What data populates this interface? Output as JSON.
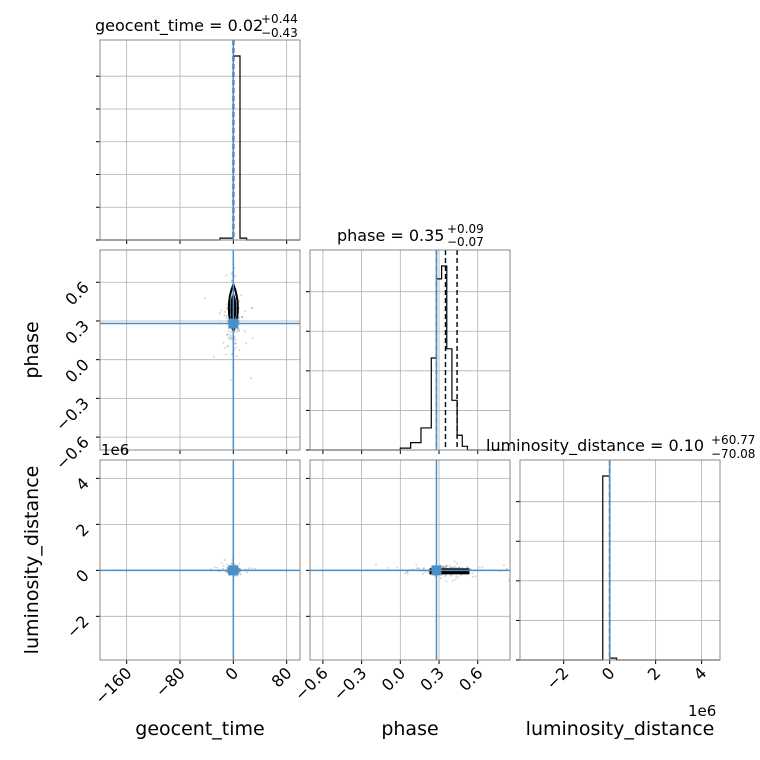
{
  "chart_data": {
    "type": "corner",
    "parameters": [
      "geocent_time",
      "phase",
      "luminosity_distance"
    ],
    "injection_color": "#4a90c8",
    "titles": {
      "geocent_time": {
        "prefix": "geocent_time = ",
        "value": "0.02",
        "upper": "+0.44",
        "lower": "−0.43"
      },
      "phase": {
        "prefix": "phase = ",
        "value": "0.35",
        "upper": "+0.09",
        "lower": "−0.07"
      },
      "luminosity_distance": {
        "prefix": "luminosity_distance = ",
        "value": "0.10",
        "upper": "+60.77",
        "lower": "−70.08"
      }
    },
    "axis_labels": {
      "x": [
        "geocent_time",
        "phase",
        "luminosity_distance"
      ],
      "y": [
        "phase",
        "luminosity_distance"
      ]
    },
    "axes": {
      "geocent_time": {
        "range": [
          -200,
          100
        ],
        "ticks": [
          -160,
          -80,
          0,
          80
        ],
        "tick_labels": [
          "−160",
          "−80",
          "0",
          "80"
        ],
        "injection": 0
      },
      "phase": {
        "range": [
          -0.7,
          0.85
        ],
        "ticks": [
          -0.6,
          -0.3,
          0.0,
          0.3,
          0.6
        ],
        "tick_labels": [
          "−0.6",
          "−0.3",
          "0.0",
          "0.3",
          "0.6"
        ],
        "injection": 0.28
      },
      "luminosity_distance": {
        "range": [
          -3.9,
          4.8
        ],
        "ticks": [
          -2,
          0,
          2,
          4
        ],
        "tick_labels": [
          "−2",
          "0",
          "2",
          "4"
        ],
        "offset_text": "1e6",
        "injection": 0
      }
    },
    "quantile_lines": {
      "geocent_time": [
        -0.41,
        0.02,
        0.46
      ],
      "phase": [
        0.28,
        0.35,
        0.44
      ],
      "luminosity_distance": [
        -7e-05,
        1e-07,
        6e-05
      ]
    },
    "histograms": {
      "geocent_time": {
        "bins": [
          -200,
          -180,
          -160,
          -140,
          -120,
          -100,
          -80,
          -60,
          -40,
          -20,
          -10,
          0,
          10,
          20,
          40,
          60,
          80,
          100
        ],
        "counts": [
          0,
          0,
          0,
          0,
          0,
          0,
          0,
          0,
          0,
          0.01,
          0.01,
          1,
          0.01,
          0,
          0,
          0,
          0
        ]
      },
      "phase": {
        "bins": [
          -0.7,
          0.0,
          0.08,
          0.16,
          0.24,
          0.28,
          0.32,
          0.36,
          0.4,
          0.44,
          0.48,
          0.52,
          0.6,
          0.85
        ],
        "counts": [
          0,
          0.01,
          0.04,
          0.12,
          0.5,
          0.93,
          1,
          0.55,
          0.27,
          0.08,
          0.02,
          0.0,
          0
        ]
      },
      "luminosity_distance": {
        "bins": [
          -3.9,
          -0.3,
          0.0,
          0.3,
          4.8
        ],
        "counts": [
          0,
          1,
          0.01,
          0
        ]
      }
    },
    "hist_yticks": {
      "geocent_time": 6,
      "phase": 5,
      "luminosity_distance": 5
    },
    "grid": true
  }
}
